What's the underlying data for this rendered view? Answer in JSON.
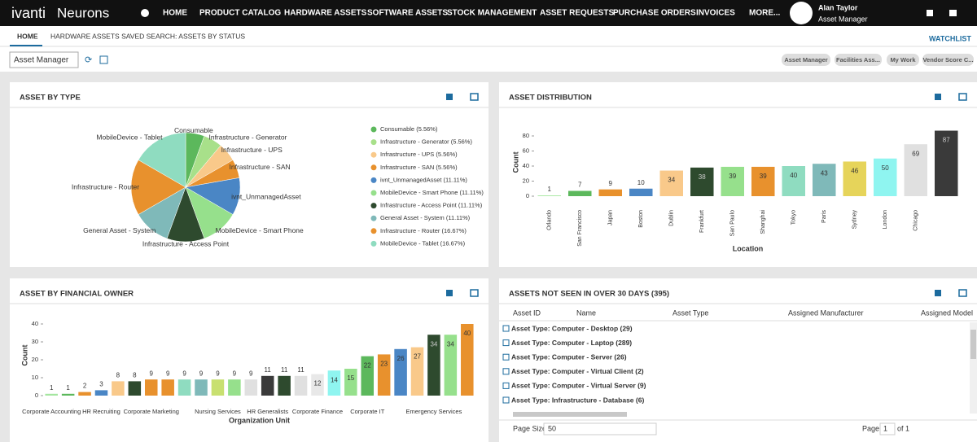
{
  "nav": {
    "logo": "ivanti",
    "product": "Neurons",
    "items": [
      "HOME",
      "PRODUCT CATALOG",
      "HARDWARE ASSETS",
      "SOFTWARE ASSETS",
      "STOCK MANAGEMENT",
      "ASSET REQUESTS",
      "PURCHASE ORDERS",
      "INVOICES",
      "MORE..."
    ],
    "user": "Alan Taylor",
    "role": "Asset Manager"
  },
  "tabs": [
    "HOME",
    "HARDWARE ASSETS SAVED SEARCH: ASSETS BY STATUS"
  ],
  "watchlist": "WATCHLIST",
  "toolbar": {
    "dropdown": "Asset Manager",
    "chips": [
      "Asset Manager",
      "Facilities Ass...",
      "My Work",
      "Vendor Score C..."
    ]
  },
  "chart_data": [
    {
      "type": "pie",
      "title": "ASSET BY TYPE",
      "categories": [
        "Consumable",
        "Infrastructure - Generator",
        "Infrastructure - UPS",
        "Infrastructure - SAN",
        "ivnt_UnmanagedAsset",
        "MobileDevice - Smart Phone",
        "Infrastructure - Access Point",
        "General Asset - System",
        "Infrastructure - Router",
        "MobileDevice - Tablet"
      ],
      "values": [
        5.56,
        5.56,
        5.56,
        5.56,
        11.11,
        11.11,
        11.11,
        11.11,
        16.67,
        16.67
      ],
      "value_labels": [
        "Consumable (5.56%)",
        "Infrastructure - Generator (5.56%)",
        "Infrastructure - UPS (5.56%)",
        "Infrastructure - SAN (5.56%)",
        "ivnt_UnmanagedAsset (11.11%)",
        "MobileDevice - Smart Phone (11.11%)",
        "Infrastructure - Access Point (11.11%)",
        "General Asset - System (11.11%)",
        "Infrastructure - Router (16.67%)",
        "MobileDevice - Tablet (16.67%)"
      ],
      "colors": [
        "#5cb85c",
        "#a8e08a",
        "#f9c98a",
        "#e8912d",
        "#4a86c5",
        "#96e08c",
        "#2e4a2e",
        "#7fb9b9",
        "#e8912d",
        "#8fdcc0"
      ]
    },
    {
      "type": "bar",
      "title": "ASSET DISTRIBUTION",
      "x_label": "Location",
      "y_label": "Count",
      "categories": [
        "Orlando",
        "San Francisco",
        "Japan",
        "Boston",
        "Dublin",
        "Frankfurt",
        "San Paulo",
        "Shanghai",
        "Tokyo",
        "Paris",
        "Sydney",
        "London",
        "Chicago",
        null
      ],
      "values": [
        1,
        7,
        9,
        10,
        34,
        38,
        39,
        39,
        40,
        43,
        46,
        50,
        69,
        87
      ],
      "colors": [
        "#a5e6a0",
        "#5cb85c",
        "#e8912d",
        "#4a86c5",
        "#f9c98a",
        "#2e4a2e",
        "#96e08c",
        "#e8912d",
        "#8fdcc0",
        "#7fb9b9",
        "#e6d45a",
        "#8ff5f0",
        "#e0e0e0",
        "#3a3a3a"
      ],
      "ylim": [
        0,
        90
      ],
      "yticks": [
        0,
        20,
        40,
        60,
        80
      ]
    },
    {
      "type": "bar",
      "title": "ASSET BY FINANCIAL OWNER",
      "x_label": "Organization Unit",
      "y_label": "Count",
      "categories": [
        "Corporate Accounting",
        null,
        null,
        "HR Recruiting",
        null,
        null,
        "Corporate Marketing",
        null,
        null,
        null,
        "Nursing Services",
        null,
        null,
        "HR Generalists",
        null,
        null,
        "Corporate Finance",
        null,
        null,
        "Corporate IT",
        null,
        null,
        null,
        "Emergency Services",
        null,
        null
      ],
      "values": [
        1,
        1,
        2,
        3,
        8,
        8,
        9,
        9,
        9,
        9,
        9,
        9,
        9,
        11,
        11,
        11,
        12,
        14,
        15,
        22,
        23,
        26,
        27,
        34,
        34,
        40
      ],
      "colors": [
        "#a5e6a0",
        "#5cb85c",
        "#e8912d",
        "#4a86c5",
        "#f9c98a",
        "#2e4a2e",
        "#e8912d",
        "#e8912d",
        "#8fdcc0",
        "#7fb9b9",
        "#c8e070",
        "#96e08c",
        "#e0e0e0",
        "#3a3a3a",
        "#2e4a2e",
        "#e0e0e0",
        "#e8e8e8",
        "#8ff5f0",
        "#96e08c",
        "#5cb85c",
        "#e8912d",
        "#4a86c5",
        "#f9c98a",
        "#2e4a2e",
        "#96e08c",
        "#e8912d"
      ],
      "ylim": [
        0,
        45
      ],
      "yticks": [
        0,
        10,
        20,
        30,
        40
      ]
    }
  ],
  "table": {
    "title": "ASSETS NOT SEEN IN OVER 30 DAYS (395)",
    "columns": [
      "Asset ID",
      "Name",
      "Asset Type",
      "Assigned Manufacturer",
      "Assigned Model"
    ],
    "groups": [
      "Asset Type: Computer - Desktop (29)",
      "Asset Type: Computer - Laptop (289)",
      "Asset Type: Computer - Server (26)",
      "Asset Type: Computer - Virtual Client (2)",
      "Asset Type: Computer - Virtual Server (9)",
      "Asset Type: Infrastructure - Database (6)"
    ],
    "pager": {
      "size_label": "Page Size",
      "size": "50",
      "page_label": "Page",
      "page": "1",
      "of": "of 1"
    }
  }
}
